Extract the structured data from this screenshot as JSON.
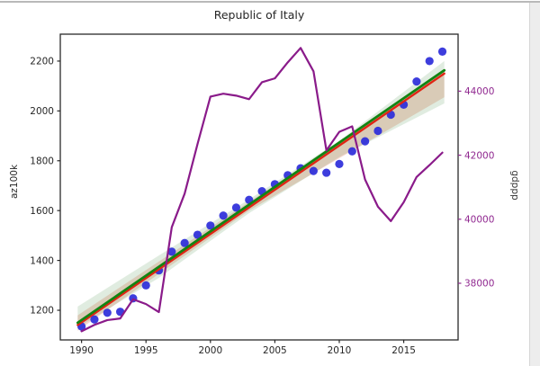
{
  "window": {
    "top_edge_color": "#b9b9b9",
    "right_strip_color": "#ededed"
  },
  "chart_data": {
    "type": "line",
    "title": "Republic of Italy",
    "grid": false,
    "legend": null,
    "x_axis": {
      "ticks": [
        1990,
        1995,
        2000,
        2005,
        2010,
        2015
      ],
      "range": [
        1988.35,
        2019.22
      ],
      "tick_color": "#262626"
    },
    "left_axis": {
      "label": "az100k",
      "ticks": [
        1200,
        1400,
        1600,
        1800,
        2000,
        2200
      ],
      "range": [
        1081,
        2308
      ],
      "tick_color": "#262626"
    },
    "right_axis": {
      "label": "gdppp",
      "ticks": [
        38000,
        40000,
        42000,
        44000
      ],
      "range": [
        36230,
        45780
      ],
      "tick_color": "#902890",
      "label_color": "#3a3a3a"
    },
    "years": [
      1990,
      1991,
      1992,
      1993,
      1994,
      1995,
      1996,
      1997,
      1998,
      1999,
      2000,
      2001,
      2002,
      2003,
      2004,
      2005,
      2006,
      2007,
      2008,
      2009,
      2010,
      2011,
      2012,
      2013,
      2014,
      2015,
      2016,
      2017,
      2018
    ],
    "series": [
      {
        "name": "az100k-scatter",
        "type": "scatter",
        "axis": "left",
        "color": "#2d2dda",
        "radius": 4.6,
        "x": [
          1990,
          1991,
          1992,
          1993,
          1994,
          1995,
          1996,
          1997,
          1998,
          1999,
          2000,
          2001,
          2002,
          2003,
          2004,
          2005,
          2006,
          2007,
          2008,
          2009,
          2010,
          2011,
          2012,
          2013,
          2014,
          2015,
          2016,
          2017,
          2018
        ],
        "values": [
          1135,
          1163,
          1190,
          1194,
          1248,
          1300,
          1360,
          1435,
          1470,
          1503,
          1540,
          1580,
          1612,
          1643,
          1678,
          1706,
          1742,
          1770,
          1759,
          1752,
          1787,
          1838,
          1878,
          1920,
          1985,
          2025,
          2118,
          2200,
          2238
        ]
      },
      {
        "name": "red-trend",
        "type": "line",
        "axis": "left",
        "color": "#e02514",
        "width": 2.4,
        "x": [
          1989.7,
          2018.15
        ],
        "values": [
          1141,
          2150
        ]
      },
      {
        "name": "green-trend",
        "type": "line",
        "axis": "left",
        "color": "#128412",
        "width": 2.8,
        "x": [
          1989.7,
          2018.15
        ],
        "values": [
          1150,
          2163
        ]
      },
      {
        "name": "gdppp-line",
        "type": "line",
        "axis": "right",
        "color": "#8a1b8a",
        "width": 2.2,
        "x": [
          1990,
          1991,
          1992,
          1993,
          1994,
          1995,
          1996,
          1997,
          1998,
          1999,
          2000,
          2001,
          2002,
          2003,
          2004,
          2005,
          2006,
          2007,
          2008,
          2009,
          2010,
          2011,
          2012,
          2013,
          2014,
          2015,
          2016,
          2017,
          2018
        ],
        "values": [
          36500,
          36700,
          36850,
          36900,
          37500,
          37350,
          37100,
          39750,
          40800,
          42350,
          43830,
          43920,
          43860,
          43750,
          44280,
          44400,
          44900,
          45350,
          44620,
          42150,
          42730,
          42900,
          41240,
          40390,
          39940,
          40530,
          41320,
          41690,
          42080
        ]
      }
    ],
    "bands": [
      {
        "name": "red-confidence-band",
        "axis": "left",
        "color": "rgba(225,110,80,0.28)",
        "x": [
          1989.7,
          2003,
          2018.15
        ],
        "upper": [
          1180,
          1635,
          2150
        ],
        "lower": [
          1118,
          1600,
          2055
        ]
      },
      {
        "name": "green-confidence-band",
        "axis": "left",
        "color": "rgba(85,150,85,0.18)",
        "x": [
          1989.7,
          1996,
          2003,
          2010,
          2018.15
        ],
        "upper": [
          1215,
          1420,
          1645,
          1880,
          2200
        ],
        "lower": [
          1130,
          1330,
          1590,
          1815,
          2030
        ]
      }
    ],
    "plot_frame_color": "#2a2a2a"
  }
}
